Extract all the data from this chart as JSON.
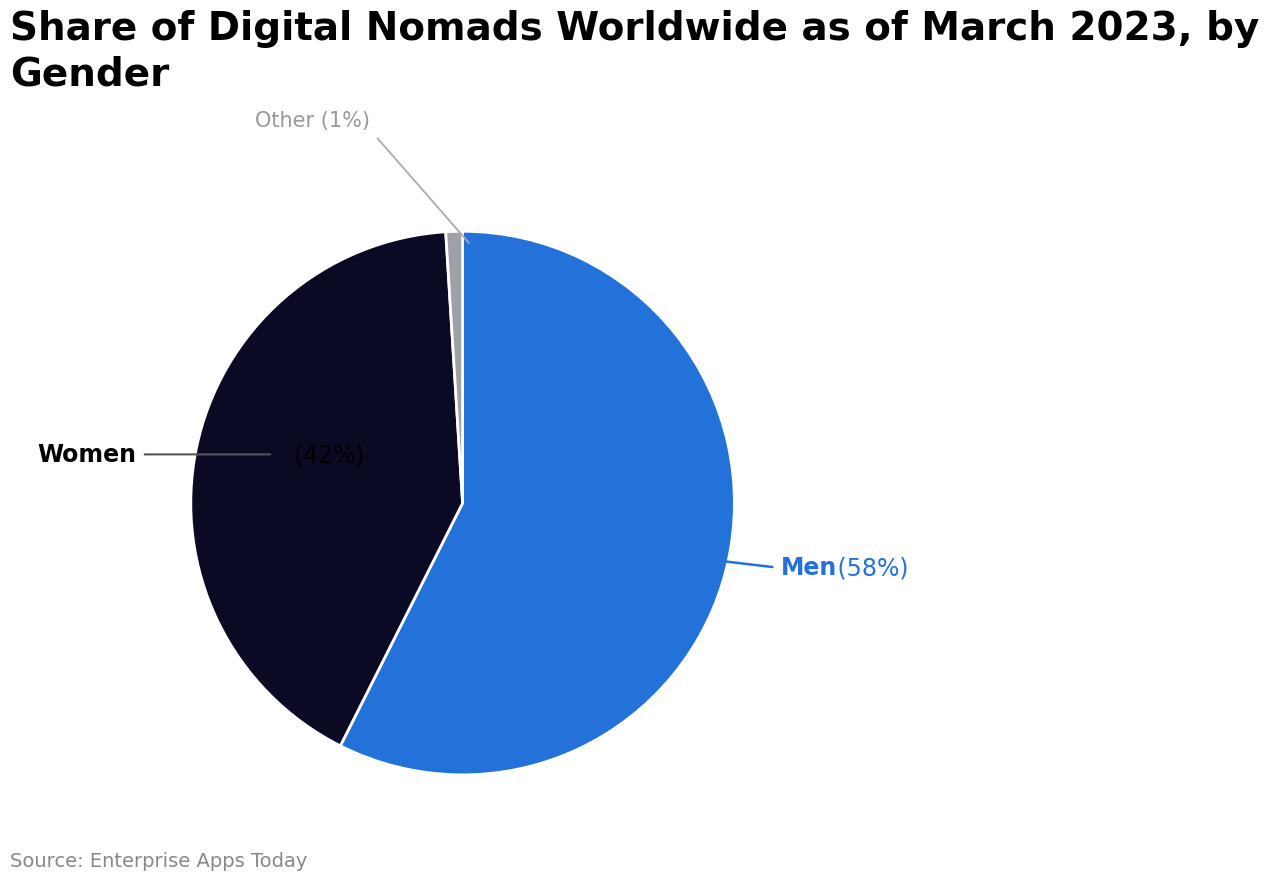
{
  "title": "Share of Digital Nomads Worldwide as of March 2023, by\nGender",
  "slices": [
    {
      "label": "Men",
      "value": 58,
      "color": "#2272D9",
      "pct": "58%"
    },
    {
      "label": "Women",
      "value": 42,
      "color": "#0A0A25",
      "pct": "42%"
    },
    {
      "label": "Other",
      "value": 1,
      "color": "#A0A0A8",
      "pct": "1%"
    }
  ],
  "source": "Source: Enterprise Apps Today",
  "background_color": "#FFFFFF",
  "title_fontsize": 28,
  "label_fontsize": 17,
  "source_fontsize": 14,
  "women_label_bold": "Women",
  "women_label_normal": " (42%)",
  "men_label_bold": "Men",
  "men_label_blue": " (58%)",
  "other_label": "Other (1%)"
}
